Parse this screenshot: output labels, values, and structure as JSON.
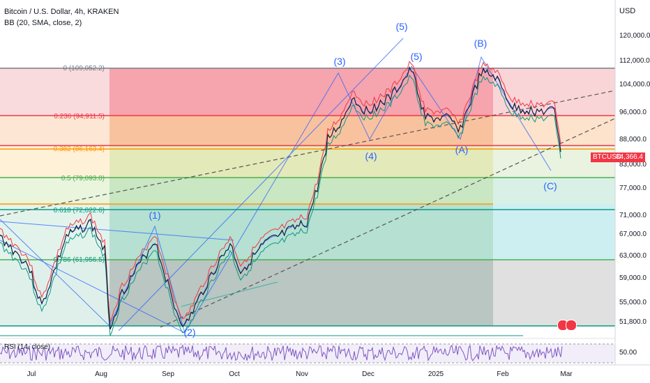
{
  "header": {
    "title": "Bitcoin / U.S. Dollar, 4h, KRAKEN",
    "study": "BB (20, SMA, close, 2)"
  },
  "price_axis": {
    "currency": "USD",
    "labels": [
      "120,000.0",
      "112,000.0",
      "104,000.0",
      "96,000.0",
      "88,000.0",
      "83,000.0",
      "77,000.0",
      "71,000.0",
      "67,000.0",
      "63,000.0",
      "59,000.0",
      "55,000.0",
      "51,800.0"
    ],
    "current_symbol": "BTCUSD",
    "current_price": "84,366.4"
  },
  "time_axis": {
    "labels": [
      "Jul",
      "Aug",
      "Sep",
      "Oct",
      "Nov",
      "Dec",
      "2025",
      "Feb",
      "Mar"
    ]
  },
  "fib_levels": [
    {
      "label": "0 (109,052.2)",
      "color": "#787b86"
    },
    {
      "label": "0.236 (94,911.5)",
      "color": "#f23645"
    },
    {
      "label": "0.382 (86,163.4)",
      "color": "#ff9800"
    },
    {
      "label": "0.5 (79,093.0)",
      "color": "#4caf50"
    },
    {
      "label": "0.618 (72,022.6)",
      "color": "#089981"
    },
    {
      "label": "0.786 (61,956.5)",
      "color": "#089981"
    }
  ],
  "wave_labels": [
    "(1)",
    "(2)",
    "(3)",
    "(4)",
    "(5)",
    "(5)",
    "(A)",
    "(B)",
    "(C)"
  ],
  "rsi": {
    "label": "RSI (14, close)",
    "value_label": "50.00"
  },
  "colors": {
    "bb_upper": "#f23645",
    "bb_lower": "#089981",
    "bb_basis": "#2962ff",
    "price": "#131722",
    "wave": "#2962ff",
    "rsi": "#7e57c2"
  }
}
